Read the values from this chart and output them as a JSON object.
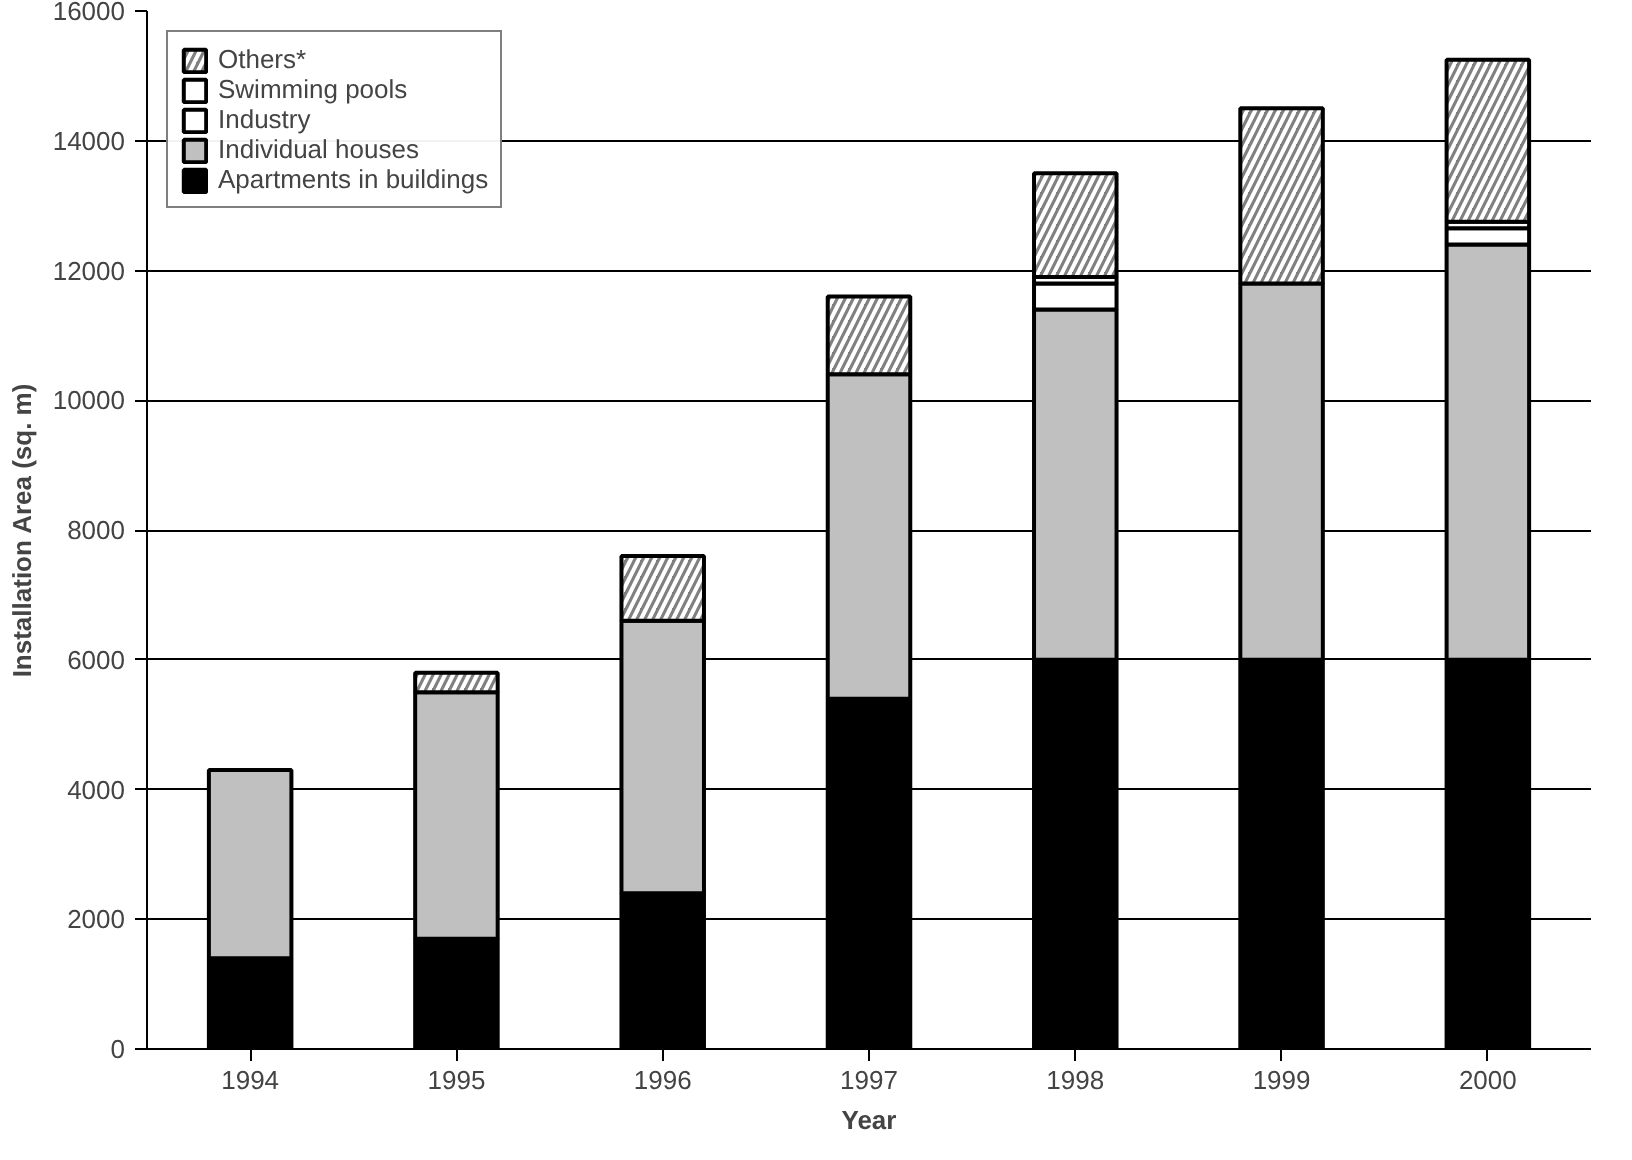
{
  "chart_data": {
    "type": "bar",
    "stacked": true,
    "xlabel": "Year",
    "ylabel": "Installation Area (sq. m)",
    "categories": [
      "1994",
      "1995",
      "1996",
      "1997",
      "1998",
      "1999",
      "2000"
    ],
    "series": [
      {
        "name": "Apartments in buildings",
        "color": "#000000",
        "values": [
          1400,
          1700,
          2400,
          5400,
          6000,
          6000,
          6000
        ]
      },
      {
        "name": "Individual houses",
        "color": "#c0c0c0",
        "values": [
          2900,
          3800,
          4200,
          5000,
          5400,
          5800,
          6400
        ]
      },
      {
        "name": "Industry",
        "color": "#ffffff",
        "values": [
          0,
          0,
          0,
          0,
          400,
          0,
          250
        ]
      },
      {
        "name": "Swimming pools",
        "color": "#ffffff",
        "values": [
          0,
          0,
          0,
          0,
          100,
          0,
          100
        ]
      },
      {
        "name": "Others*",
        "color": "#808080",
        "values": [
          0,
          300,
          1000,
          1200,
          1600,
          2700,
          2500
        ]
      }
    ],
    "ylim": [
      0,
      16000
    ],
    "yticks": [
      0,
      2000,
      4000,
      6000,
      8000,
      10000,
      12000,
      14000,
      16000
    ],
    "grid": "y",
    "legend": "top left"
  }
}
